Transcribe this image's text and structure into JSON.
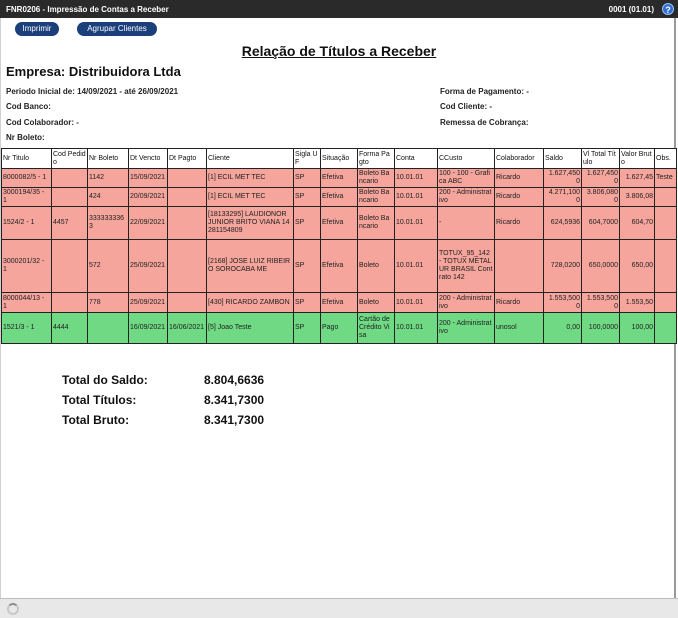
{
  "titlebar": {
    "title": "FNR0206 - Impressão de Contas a Receber",
    "version": "0001 (01.01)",
    "help_icon": "help-icon"
  },
  "toolbar": {
    "print_label": "Imprimir",
    "group_label": "Agrupar Clientes"
  },
  "report": {
    "title": "Relação de Títulos a Receber",
    "empresa": "Empresa: Distribuidora Ltda",
    "periodo": "Periodo Inicial de: 14/09/2021 - até 26/09/2021",
    "cod_banco": "Cod Banco:",
    "cod_colaborador": "Cod Colaborador: -",
    "nr_boleto": "Nr Boleto:",
    "forma_pagamento": "Forma de Pagamento: -",
    "cod_cliente": "Cod Cliente: -",
    "remessa": "Remessa de Cobrança:"
  },
  "table": {
    "headers": [
      "Nr Titulo",
      "Cod Pedido",
      "Nr Boleto",
      "Dt Vencto",
      "Dt Pagto",
      "Cliente",
      "Sigla UF",
      "Situação",
      "Forma Pagto",
      "Conta",
      "CCusto",
      "Colaborador",
      "Saldo",
      "Vl Total Título",
      "Valor Bruto",
      "Obs."
    ],
    "rows": [
      {
        "status": "aberto",
        "cells": [
          "8000082/5 - 1",
          "",
          "1142",
          "15/09/2021",
          "",
          "[1] ECIL MET TEC",
          "SP",
          "Efetiva",
          "Boleto Bancario",
          "10.01.01",
          "100 - 100 - Grafica ABC",
          "Ricardo",
          "1.627,4500",
          "1.627,4500",
          "1.627,45",
          "Teste"
        ]
      },
      {
        "status": "aberto",
        "cells": [
          "3000194/35 - 1",
          "",
          "424",
          "20/09/2021",
          "",
          "[1] ECIL MET TEC",
          "SP",
          "Efetiva",
          "Boleto Bancario",
          "10.01.01",
          "200 - Administrativo",
          "Ricardo",
          "4.271,1000",
          "3.806,0800",
          "3.806,08",
          ""
        ]
      },
      {
        "status": "aberto",
        "cells": [
          "1524/2 - 1",
          "4457",
          "3333333363",
          "22/09/2021",
          "",
          "[18133295] LAUDIONOR JUNIOR BRITO VIANA 14281154809",
          "SP",
          "Efetiva",
          "Boleto Bancario",
          "10.01.01",
          "-",
          "Ricardo",
          "624,5936",
          "604,7000",
          "604,70",
          ""
        ]
      },
      {
        "status": "aberto",
        "cells": [
          "3000201/32 - 1",
          "",
          "572",
          "25/09/2021",
          "",
          "[2168] JOSE LUIZ RIBEIRO SOROCABA ME",
          "SP",
          "Efetiva",
          "Boleto",
          "10.01.01",
          "TOTUX_95_142 - TOTUX METALUR BRASIL Contrato 142",
          "",
          "728,0200",
          "650,0000",
          "650,00",
          ""
        ]
      },
      {
        "status": "aberto",
        "cells": [
          "8000044/13 - 1",
          "",
          "778",
          "25/09/2021",
          "",
          "[430] RICARDO ZAMBON",
          "SP",
          "Efetiva",
          "Boleto",
          "10.01.01",
          "200 - Administrativo",
          "Ricardo",
          "1.553,5000",
          "1.553,5000",
          "1.553,50",
          ""
        ]
      },
      {
        "status": "pago",
        "cells": [
          "1521/3 - 1",
          "4444",
          "",
          "16/09/2021",
          "16/06/2021",
          "[5] Joao Teste",
          "SP",
          "Pago",
          "Cartão de Crédito Visa",
          "10.01.01",
          "200 - Administrativo",
          "unosol",
          "0,00",
          "100,0000",
          "100,00",
          ""
        ]
      }
    ]
  },
  "totals": [
    {
      "label": "Total do Saldo:",
      "value": "8.804,6636"
    },
    {
      "label": "Total Títulos:",
      "value": "8.341,7300"
    },
    {
      "label": "Total Bruto:",
      "value": "8.341,7300"
    }
  ],
  "colors": {
    "aberto": "#f5a59c",
    "pago": "#6fd983",
    "pill": "#1b3f7a",
    "titlebar": "#2a2a2a"
  }
}
